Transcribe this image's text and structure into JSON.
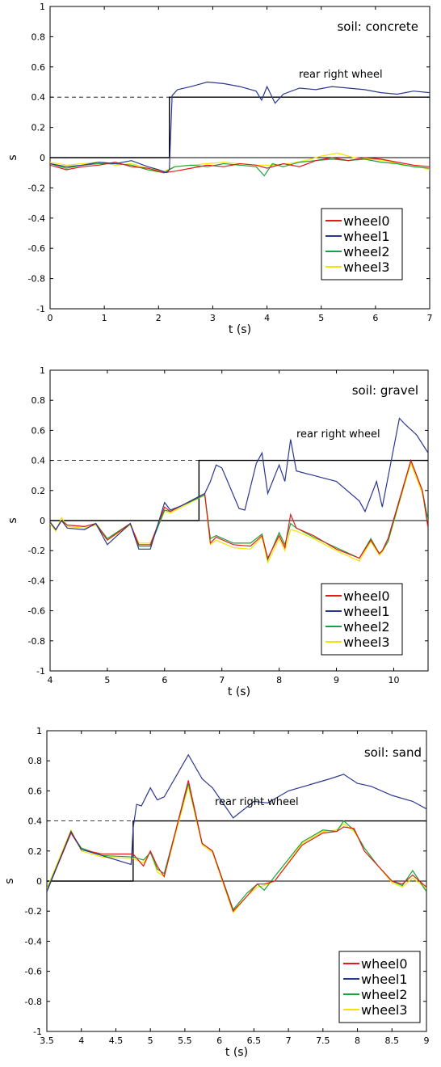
{
  "chart_data": [
    {
      "type": "line",
      "annotation": "soil: concrete",
      "series_annotation": "rear right wheel",
      "xlabel": "t (s)",
      "ylabel": "s",
      "xlim": [
        0,
        7
      ],
      "ylim": [
        -1,
        1
      ],
      "xticks": [
        "0",
        "1",
        "2",
        "3",
        "4",
        "5",
        "6",
        "7"
      ],
      "yticks": [
        "1",
        "0.8",
        "0.6",
        "0.4",
        "0.2",
        "0",
        "-0.2",
        "-0.4",
        "-0.6",
        "-0.8",
        "-1"
      ],
      "grid": false,
      "legend_position": "lower-right",
      "legend": [
        "wheel0",
        "wheel1",
        "wheel2",
        "wheel3"
      ],
      "reference": {
        "step_x": 2.2,
        "low": 0,
        "high": 0.4,
        "zero_line": 0
      },
      "series": [
        {
          "name": "wheel0",
          "color": "#e41a1c",
          "x": [
            0,
            0.3,
            0.6,
            0.9,
            1.2,
            1.5,
            1.8,
            2.1,
            2.3,
            2.6,
            2.9,
            3.2,
            3.5,
            3.8,
            4.0,
            4.3,
            4.6,
            4.9,
            5.2,
            5.5,
            5.8,
            6.1,
            6.4,
            6.7,
            7.0
          ],
          "y": [
            -0.05,
            -0.08,
            -0.06,
            -0.05,
            -0.03,
            -0.06,
            -0.07,
            -0.1,
            -0.09,
            -0.07,
            -0.05,
            -0.06,
            -0.04,
            -0.05,
            -0.07,
            -0.04,
            -0.06,
            -0.02,
            0.0,
            -0.02,
            0.0,
            -0.01,
            -0.03,
            -0.05,
            -0.06
          ]
        },
        {
          "name": "wheel1",
          "color": "#2b3990",
          "x": [
            0,
            0.3,
            0.6,
            0.9,
            1.2,
            1.5,
            1.8,
            2.0,
            2.15,
            2.2,
            2.25,
            2.35,
            2.6,
            2.9,
            3.2,
            3.5,
            3.8,
            3.9,
            4.0,
            4.15,
            4.3,
            4.6,
            4.9,
            5.2,
            5.5,
            5.8,
            6.1,
            6.4,
            6.7,
            7.0
          ],
          "y": [
            -0.04,
            -0.06,
            -0.05,
            -0.03,
            -0.04,
            -0.02,
            -0.06,
            -0.08,
            -0.1,
            -0.08,
            0.41,
            0.45,
            0.47,
            0.5,
            0.49,
            0.47,
            0.44,
            0.38,
            0.47,
            0.36,
            0.42,
            0.46,
            0.45,
            0.47,
            0.46,
            0.45,
            0.43,
            0.42,
            0.44,
            0.43
          ]
        },
        {
          "name": "wheel2",
          "color": "#1aa33b",
          "x": [
            0,
            0.3,
            0.6,
            0.9,
            1.2,
            1.5,
            1.8,
            2.1,
            2.3,
            2.6,
            2.9,
            3.2,
            3.5,
            3.8,
            3.95,
            4.1,
            4.3,
            4.6,
            4.9,
            5.2,
            5.5,
            5.8,
            6.1,
            6.4,
            6.7,
            7.0
          ],
          "y": [
            -0.04,
            -0.07,
            -0.05,
            -0.04,
            -0.04,
            -0.05,
            -0.08,
            -0.1,
            -0.06,
            -0.05,
            -0.06,
            -0.04,
            -0.05,
            -0.06,
            -0.12,
            -0.04,
            -0.06,
            -0.03,
            -0.02,
            -0.01,
            -0.02,
            -0.01,
            -0.03,
            -0.04,
            -0.06,
            -0.07
          ]
        },
        {
          "name": "wheel3",
          "color": "#f2e500",
          "x": [
            0,
            0.3,
            0.6,
            0.9,
            1.2,
            1.5,
            1.8,
            2.1,
            2.3,
            2.6,
            2.9,
            3.2,
            3.5,
            3.8,
            4.1,
            4.4,
            4.7,
            5.0,
            5.3,
            5.6,
            5.9,
            6.2,
            6.5,
            6.8,
            7.0
          ],
          "y": [
            -0.03,
            -0.05,
            -0.04,
            -0.03,
            -0.05,
            -0.04,
            -0.07,
            -0.09,
            -0.06,
            -0.05,
            -0.04,
            -0.03,
            -0.04,
            -0.05,
            -0.05,
            -0.04,
            -0.02,
            0.01,
            0.03,
            0.0,
            -0.01,
            -0.02,
            -0.05,
            -0.06,
            -0.08
          ]
        }
      ]
    },
    {
      "type": "line",
      "annotation": "soil: gravel",
      "series_annotation": "rear right wheel",
      "xlabel": "t (s)",
      "ylabel": "s",
      "xlim": [
        4,
        10.6
      ],
      "ylim": [
        -1,
        1
      ],
      "xticks": [
        "4",
        "5",
        "6",
        "7",
        "8",
        "9",
        "10"
      ],
      "yticks": [
        "1",
        "0.8",
        "0.6",
        "0.4",
        "0.2",
        "0",
        "-0.2",
        "-0.4",
        "-0.6",
        "-0.8",
        "-1"
      ],
      "grid": false,
      "legend_position": "lower-right",
      "legend": [
        "wheel0",
        "wheel1",
        "wheel2",
        "wheel3"
      ],
      "reference": {
        "step_x": 6.6,
        "low": 0,
        "high": 0.4,
        "zero_line": 0
      },
      "series": [
        {
          "name": "wheel0",
          "color": "#e41a1c",
          "x": [
            4,
            4.1,
            4.2,
            4.3,
            4.6,
            4.8,
            5.0,
            5.4,
            5.55,
            5.75,
            6.0,
            6.1,
            6.3,
            6.7,
            6.8,
            6.9,
            7.2,
            7.5,
            7.7,
            7.8,
            8.0,
            8.1,
            8.2,
            8.3,
            8.6,
            9.0,
            9.4,
            9.6,
            9.75,
            9.8,
            9.9,
            10.3,
            10.5,
            10.6
          ],
          "y": [
            -0.01,
            -0.06,
            0.0,
            -0.03,
            -0.04,
            -0.02,
            -0.13,
            -0.02,
            -0.16,
            -0.16,
            0.09,
            0.06,
            0.1,
            0.18,
            -0.15,
            -0.11,
            -0.16,
            -0.17,
            -0.1,
            -0.25,
            -0.1,
            -0.18,
            0.04,
            -0.05,
            -0.1,
            -0.19,
            -0.25,
            -0.13,
            -0.22,
            -0.2,
            -0.12,
            0.4,
            0.2,
            -0.05
          ]
        },
        {
          "name": "wheel1",
          "color": "#2b3990",
          "x": [
            4,
            4.1,
            4.2,
            4.3,
            4.6,
            4.8,
            5.0,
            5.4,
            5.55,
            5.75,
            6.0,
            6.1,
            6.3,
            6.7,
            6.8,
            6.9,
            7.0,
            7.3,
            7.4,
            7.6,
            7.7,
            7.8,
            8.0,
            8.1,
            8.2,
            8.3,
            8.6,
            9.0,
            9.4,
            9.5,
            9.7,
            9.8,
            10.1,
            10.2,
            10.4,
            10.6
          ],
          "y": [
            -0.01,
            -0.06,
            0.0,
            -0.05,
            -0.06,
            -0.02,
            -0.16,
            -0.02,
            -0.19,
            -0.19,
            0.12,
            0.07,
            0.1,
            0.18,
            0.26,
            0.37,
            0.35,
            0.08,
            0.07,
            0.38,
            0.45,
            0.18,
            0.37,
            0.26,
            0.54,
            0.33,
            0.3,
            0.26,
            0.13,
            0.06,
            0.26,
            0.09,
            0.68,
            0.64,
            0.57,
            0.45
          ]
        },
        {
          "name": "wheel2",
          "color": "#1aa33b",
          "x": [
            4,
            4.1,
            4.2,
            4.3,
            4.6,
            4.8,
            5.0,
            5.4,
            5.55,
            5.75,
            6.0,
            6.1,
            6.3,
            6.7,
            6.8,
            6.9,
            7.2,
            7.5,
            7.7,
            7.8,
            8.0,
            8.1,
            8.2,
            8.3,
            8.6,
            9.0,
            9.4,
            9.6,
            9.75,
            9.8,
            9.9,
            10.3,
            10.5,
            10.6
          ],
          "y": [
            -0.01,
            -0.06,
            0.0,
            -0.03,
            -0.04,
            -0.02,
            -0.12,
            -0.02,
            -0.17,
            -0.17,
            0.07,
            0.06,
            0.1,
            0.17,
            -0.12,
            -0.1,
            -0.15,
            -0.15,
            -0.09,
            -0.26,
            -0.08,
            -0.16,
            -0.02,
            -0.05,
            -0.11,
            -0.18,
            -0.25,
            -0.12,
            -0.22,
            -0.2,
            -0.14,
            0.4,
            0.2,
            0.0
          ]
        },
        {
          "name": "wheel3",
          "color": "#f2e500",
          "x": [
            4,
            4.1,
            4.2,
            4.3,
            4.6,
            4.8,
            5.0,
            5.4,
            5.55,
            5.75,
            6.0,
            6.1,
            6.3,
            6.7,
            6.8,
            6.9,
            7.2,
            7.5,
            7.7,
            7.8,
            8.0,
            8.1,
            8.2,
            8.3,
            8.6,
            9.0,
            9.4,
            9.6,
            9.75,
            9.8,
            9.9,
            10.3,
            10.5,
            10.6
          ],
          "y": [
            -0.02,
            -0.07,
            0.02,
            -0.04,
            -0.05,
            -0.03,
            -0.13,
            -0.03,
            -0.15,
            -0.15,
            0.06,
            0.05,
            0.09,
            0.17,
            -0.16,
            -0.13,
            -0.18,
            -0.19,
            -0.11,
            -0.28,
            -0.12,
            -0.2,
            -0.06,
            -0.07,
            -0.12,
            -0.2,
            -0.27,
            -0.14,
            -0.23,
            -0.21,
            -0.14,
            0.38,
            0.18,
            0.0
          ]
        }
      ]
    },
    {
      "type": "line",
      "annotation": "soil: sand",
      "series_annotation": "rear right wheel",
      "xlabel": "t (s)",
      "ylabel": "s",
      "xlim": [
        3.5,
        9
      ],
      "ylim": [
        -1,
        1
      ],
      "xticks": [
        "3.5",
        "4",
        "4.5",
        "5",
        "5.5",
        "6",
        "6.5",
        "7",
        "7.5",
        "8",
        "8.5",
        "9"
      ],
      "yticks": [
        "1",
        "0.8",
        "0.6",
        "0.4",
        "0.2",
        "0",
        "-0.2",
        "-0.4",
        "-0.6",
        "-0.8",
        "-1"
      ],
      "grid": false,
      "legend_position": "lower-right",
      "legend": [
        "wheel0",
        "wheel1",
        "wheel2",
        "wheel3"
      ],
      "reference": {
        "step_x": 4.75,
        "low": 0,
        "high": 0.4,
        "zero_line": 0
      },
      "series": [
        {
          "name": "wheel0",
          "color": "#e41a1c",
          "x": [
            3.5,
            3.85,
            4.0,
            4.3,
            4.75,
            4.9,
            5.0,
            5.1,
            5.2,
            5.55,
            5.75,
            5.9,
            6.2,
            6.4,
            6.55,
            6.65,
            6.8,
            7.2,
            7.5,
            7.7,
            7.8,
            7.95,
            8.1,
            8.3,
            8.5,
            8.65,
            8.8,
            9.0
          ],
          "y": [
            -0.07,
            0.32,
            0.21,
            0.18,
            0.18,
            0.1,
            0.2,
            0.1,
            0.03,
            0.67,
            0.25,
            0.2,
            -0.2,
            -0.1,
            -0.02,
            -0.02,
            0.0,
            0.24,
            0.32,
            0.33,
            0.36,
            0.35,
            0.2,
            0.1,
            0.0,
            -0.02,
            0.04,
            -0.04
          ]
        },
        {
          "name": "wheel1",
          "color": "#2b3990",
          "x": [
            3.5,
            3.85,
            4.0,
            4.3,
            4.72,
            4.75,
            4.8,
            4.87,
            5.0,
            5.1,
            5.2,
            5.55,
            5.75,
            5.9,
            6.2,
            6.5,
            6.7,
            7.0,
            7.3,
            7.6,
            7.8,
            8.0,
            8.2,
            8.5,
            8.8,
            9.0
          ],
          "y": [
            -0.07,
            0.33,
            0.21,
            0.17,
            0.11,
            0.35,
            0.51,
            0.5,
            0.62,
            0.54,
            0.56,
            0.84,
            0.68,
            0.62,
            0.42,
            0.53,
            0.52,
            0.6,
            0.64,
            0.68,
            0.71,
            0.65,
            0.63,
            0.57,
            0.53,
            0.48
          ]
        },
        {
          "name": "wheel2",
          "color": "#1aa33b",
          "x": [
            3.5,
            3.85,
            4.0,
            4.3,
            4.75,
            4.9,
            5.0,
            5.1,
            5.2,
            5.55,
            5.75,
            5.9,
            6.2,
            6.4,
            6.55,
            6.65,
            6.8,
            7.2,
            7.5,
            7.7,
            7.8,
            7.95,
            8.1,
            8.3,
            8.5,
            8.65,
            8.8,
            9.0
          ],
          "y": [
            -0.06,
            0.32,
            0.22,
            0.17,
            0.16,
            0.14,
            0.19,
            0.08,
            0.05,
            0.65,
            0.25,
            0.2,
            -0.19,
            -0.08,
            -0.02,
            -0.06,
            0.03,
            0.26,
            0.34,
            0.33,
            0.4,
            0.34,
            0.22,
            0.1,
            0.0,
            -0.03,
            0.07,
            -0.07
          ]
        },
        {
          "name": "wheel3",
          "color": "#f2e500",
          "x": [
            3.5,
            3.85,
            4.0,
            4.3,
            4.75,
            4.9,
            5.0,
            5.1,
            5.2,
            5.55,
            5.75,
            5.9,
            6.2,
            6.4,
            6.55,
            6.65,
            6.8,
            7.2,
            7.5,
            7.7,
            7.8,
            7.95,
            8.1,
            8.3,
            8.5,
            8.65,
            8.8,
            9.0
          ],
          "y": [
            -0.05,
            0.34,
            0.2,
            0.16,
            0.15,
            0.12,
            0.2,
            0.06,
            0.03,
            0.63,
            0.24,
            0.19,
            -0.21,
            -0.1,
            -0.04,
            -0.03,
            0.0,
            0.25,
            0.33,
            0.34,
            0.38,
            0.33,
            0.22,
            0.1,
            -0.01,
            -0.04,
            0.02,
            -0.05
          ]
        }
      ]
    }
  ]
}
